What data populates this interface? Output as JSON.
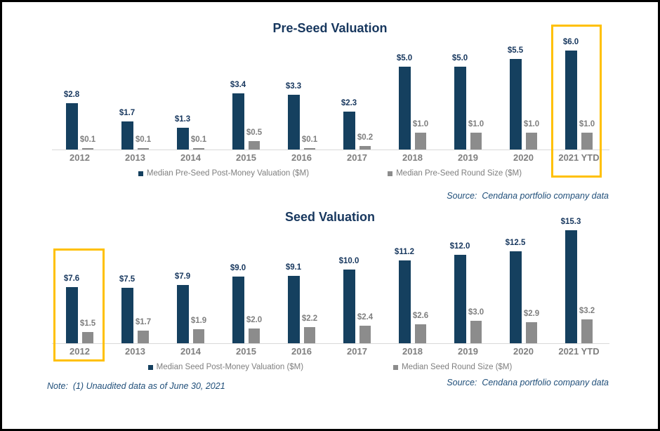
{
  "colors": {
    "valuation_bar": "#15405F",
    "round_size_bar": "#8C8C8C",
    "navy_text": "#17375E",
    "gray_text": "#7F7F7F",
    "axis_line": "#D9D9D9",
    "highlight_border": "#FFC000",
    "source_text": "#1F4E79"
  },
  "note": "Note:  (1) Unaudited data as of June 30, 2021",
  "chart_data": [
    {
      "type": "bar",
      "title": "Pre-Seed Valuation",
      "categories": [
        "2012",
        "2013",
        "2014",
        "2015",
        "2016",
        "2017",
        "2018",
        "2019",
        "2020",
        "2021 YTD"
      ],
      "series": [
        {
          "name": "Median Pre-Seed Post-Money Valuation ($M)",
          "color": "#15405F",
          "values": [
            2.8,
            1.7,
            1.3,
            3.4,
            3.3,
            2.3,
            5.0,
            5.0,
            5.5,
            6.0
          ],
          "labels": [
            "$2.8",
            "$1.7",
            "$1.3",
            "$3.4",
            "$3.3",
            "$2.3",
            "$5.0",
            "$5.0",
            "$5.5",
            "$6.0"
          ]
        },
        {
          "name": "Median Pre-Seed Round Size ($M)",
          "color": "#8C8C8C",
          "values": [
            0.1,
            0.1,
            0.1,
            0.5,
            0.1,
            0.2,
            1.0,
            1.0,
            1.0,
            1.0
          ],
          "labels": [
            "$0.1",
            "$0.1",
            "$0.1",
            "$0.5",
            "$0.1",
            "$0.2",
            "$1.0",
            "$1.0",
            "$1.0",
            "$1.0"
          ]
        }
      ],
      "ylim": [
        0,
        7
      ],
      "grid": false,
      "legend_position": "bottom",
      "highlight_category": "2021 YTD",
      "source": "Source:  Cendana portfolio company data"
    },
    {
      "type": "bar",
      "title": "Seed Valuation",
      "categories": [
        "2012",
        "2013",
        "2014",
        "2015",
        "2016",
        "2017",
        "2018",
        "2019",
        "2020",
        "2021 YTD"
      ],
      "series": [
        {
          "name": "Median Seed Post-Money Valuation ($M)",
          "color": "#15405F",
          "values": [
            7.6,
            7.5,
            7.9,
            9.0,
            9.1,
            10.0,
            11.2,
            12.0,
            12.5,
            15.3
          ],
          "labels": [
            "$7.6",
            "$7.5",
            "$7.9",
            "$9.0",
            "$9.1",
            "$10.0",
            "$11.2",
            "$12.0",
            "$12.5",
            "$15.3"
          ]
        },
        {
          "name": "Median Seed Round Size ($M)",
          "color": "#8C8C8C",
          "values": [
            1.5,
            1.7,
            1.9,
            2.0,
            2.2,
            2.4,
            2.6,
            3.0,
            2.9,
            3.2
          ],
          "labels": [
            "$1.5",
            "$1.7",
            "$1.9",
            "$2.0",
            "$2.2",
            "$2.4",
            "$2.6",
            "$3.0",
            "$2.9",
            "$3.2"
          ]
        }
      ],
      "ylim": [
        0,
        17
      ],
      "grid": false,
      "legend_position": "bottom",
      "highlight_category": "2012",
      "source": "Source:  Cendana portfolio company data"
    }
  ]
}
